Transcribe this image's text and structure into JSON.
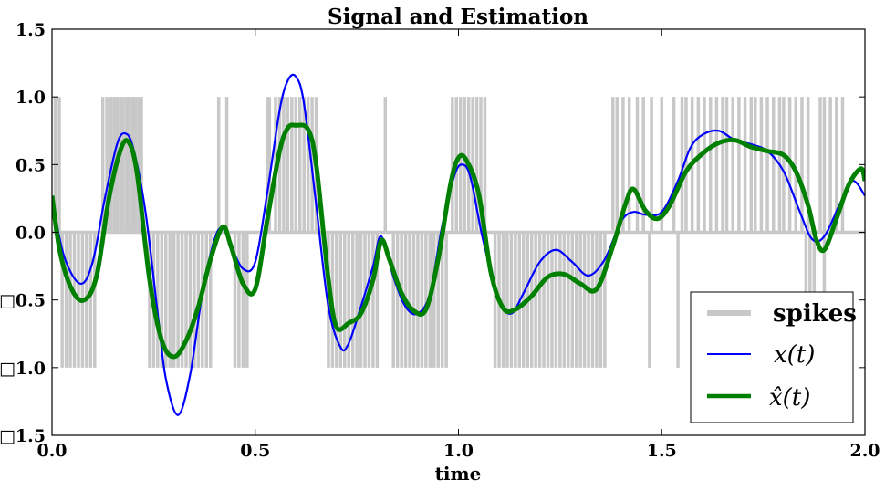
{
  "chart_data": {
    "type": "line",
    "title": "Signal and Estimation",
    "xlabel": "time",
    "ylabel": "",
    "xlim": [
      0.0,
      2.0
    ],
    "ylim": [
      -1.5,
      1.5
    ],
    "xticks": [
      "0.0",
      "0.5",
      "1.0",
      "1.5",
      "2.0"
    ],
    "yticks": [
      "□1.5",
      "□1.0",
      "□0.5",
      "0.0",
      "0.5",
      "1.0",
      "1.5"
    ],
    "ytick_values": [
      -1.5,
      -1.0,
      -0.5,
      0.0,
      0.5,
      1.0,
      1.5
    ],
    "xtick_values": [
      0.0,
      0.5,
      1.0,
      1.5,
      2.0
    ],
    "grid": false,
    "legend_position": "bottom-right",
    "series": [
      {
        "name": "spikes",
        "style": "spike-train",
        "color": "#c8c8c8",
        "positive_spike_times": [
          0.008,
          0.018,
          0.125,
          0.135,
          0.145,
          0.153,
          0.16,
          0.168,
          0.175,
          0.183,
          0.19,
          0.198,
          0.205,
          0.213,
          0.22,
          0.41,
          0.43,
          0.53,
          0.535,
          0.55,
          0.56,
          0.57,
          0.58,
          0.59,
          0.6,
          0.61,
          0.62,
          0.63,
          0.64,
          0.65,
          0.82,
          0.985,
          0.995,
          1.005,
          1.015,
          1.025,
          1.035,
          1.045,
          1.055,
          1.065,
          1.38,
          1.39,
          1.405,
          1.42,
          1.44,
          1.455,
          1.475,
          1.5,
          1.53,
          1.55,
          1.56,
          1.575,
          1.59,
          1.605,
          1.62,
          1.635,
          1.65,
          1.66,
          1.675,
          1.69,
          1.705,
          1.72,
          1.73,
          1.745,
          1.76,
          1.775,
          1.79,
          1.8,
          1.815,
          1.83,
          1.845,
          1.86,
          1.89,
          1.9,
          1.915,
          1.93,
          1.945
        ],
        "negative_spike_times": [
          0.025,
          0.035,
          0.045,
          0.055,
          0.065,
          0.075,
          0.085,
          0.095,
          0.105,
          0.24,
          0.25,
          0.26,
          0.27,
          0.28,
          0.29,
          0.3,
          0.31,
          0.32,
          0.33,
          0.34,
          0.35,
          0.36,
          0.37,
          0.38,
          0.39,
          0.45,
          0.46,
          0.47,
          0.48,
          0.68,
          0.69,
          0.7,
          0.71,
          0.72,
          0.73,
          0.74,
          0.75,
          0.76,
          0.77,
          0.78,
          0.79,
          0.8,
          0.84,
          0.85,
          0.86,
          0.87,
          0.88,
          0.89,
          0.9,
          0.91,
          0.92,
          0.93,
          0.94,
          0.95,
          0.96,
          0.97,
          1.09,
          1.1,
          1.11,
          1.12,
          1.13,
          1.14,
          1.15,
          1.16,
          1.17,
          1.18,
          1.19,
          1.2,
          1.21,
          1.22,
          1.23,
          1.24,
          1.25,
          1.26,
          1.27,
          1.28,
          1.29,
          1.3,
          1.31,
          1.32,
          1.33,
          1.34,
          1.35,
          1.36,
          1.47,
          1.54,
          1.855,
          1.865,
          1.875,
          1.9
        ]
      },
      {
        "name": "x(t)",
        "style": "line",
        "color": "#0000ff",
        "x": [
          0.0,
          0.03,
          0.07,
          0.1,
          0.13,
          0.16,
          0.18,
          0.2,
          0.23,
          0.26,
          0.28,
          0.31,
          0.34,
          0.37,
          0.4,
          0.42,
          0.44,
          0.47,
          0.5,
          0.53,
          0.56,
          0.58,
          0.6,
          0.62,
          0.65,
          0.68,
          0.71,
          0.73,
          0.76,
          0.79,
          0.81,
          0.84,
          0.87,
          0.9,
          0.93,
          0.96,
          0.99,
          1.01,
          1.03,
          1.06,
          1.1,
          1.13,
          1.16,
          1.2,
          1.24,
          1.28,
          1.32,
          1.36,
          1.4,
          1.43,
          1.46,
          1.5,
          1.54,
          1.57,
          1.6,
          1.64,
          1.68,
          1.72,
          1.76,
          1.8,
          1.84,
          1.87,
          1.9,
          1.94,
          1.97,
          2.0
        ],
        "y": [
          0.25,
          -0.18,
          -0.38,
          -0.22,
          0.25,
          0.65,
          0.73,
          0.62,
          0.15,
          -0.6,
          -1.08,
          -1.35,
          -1.05,
          -0.45,
          -0.05,
          0.03,
          -0.1,
          -0.27,
          -0.22,
          0.3,
          0.9,
          1.12,
          1.15,
          0.95,
          0.2,
          -0.55,
          -0.85,
          -0.82,
          -0.55,
          -0.25,
          -0.03,
          -0.33,
          -0.55,
          -0.6,
          -0.45,
          0.05,
          0.42,
          0.5,
          0.4,
          -0.05,
          -0.5,
          -0.6,
          -0.45,
          -0.22,
          -0.13,
          -0.22,
          -0.32,
          -0.2,
          0.08,
          0.15,
          0.13,
          0.15,
          0.38,
          0.62,
          0.72,
          0.75,
          0.68,
          0.65,
          0.6,
          0.45,
          0.15,
          -0.05,
          -0.03,
          0.22,
          0.38,
          0.27
        ]
      },
      {
        "name": "x̂(t)",
        "style": "thick-line",
        "color": "#008000",
        "x": [
          0.0,
          0.02,
          0.05,
          0.08,
          0.11,
          0.14,
          0.17,
          0.19,
          0.21,
          0.24,
          0.27,
          0.3,
          0.33,
          0.36,
          0.39,
          0.42,
          0.44,
          0.47,
          0.5,
          0.53,
          0.56,
          0.58,
          0.6,
          0.63,
          0.65,
          0.68,
          0.7,
          0.73,
          0.76,
          0.79,
          0.81,
          0.83,
          0.86,
          0.89,
          0.92,
          0.95,
          0.98,
          1.0,
          1.02,
          1.05,
          1.08,
          1.11,
          1.14,
          1.18,
          1.22,
          1.26,
          1.3,
          1.34,
          1.38,
          1.41,
          1.43,
          1.46,
          1.49,
          1.52,
          1.56,
          1.6,
          1.64,
          1.68,
          1.72,
          1.76,
          1.8,
          1.83,
          1.86,
          1.88,
          1.9,
          1.93,
          1.96,
          1.99,
          2.0
        ],
        "y": [
          0.27,
          -0.15,
          -0.43,
          -0.5,
          -0.32,
          0.25,
          0.62,
          0.66,
          0.42,
          -0.35,
          -0.8,
          -0.92,
          -0.8,
          -0.55,
          -0.2,
          0.04,
          -0.1,
          -0.38,
          -0.42,
          0.1,
          0.6,
          0.77,
          0.79,
          0.76,
          0.5,
          -0.35,
          -0.7,
          -0.67,
          -0.6,
          -0.35,
          -0.06,
          -0.2,
          -0.45,
          -0.58,
          -0.57,
          -0.2,
          0.35,
          0.55,
          0.53,
          0.28,
          -0.3,
          -0.56,
          -0.57,
          -0.47,
          -0.33,
          -0.31,
          -0.38,
          -0.42,
          -0.1,
          0.2,
          0.32,
          0.16,
          0.1,
          0.2,
          0.45,
          0.58,
          0.66,
          0.68,
          0.63,
          0.6,
          0.57,
          0.45,
          0.2,
          -0.05,
          -0.13,
          0.1,
          0.35,
          0.47,
          0.38
        ]
      }
    ]
  }
}
